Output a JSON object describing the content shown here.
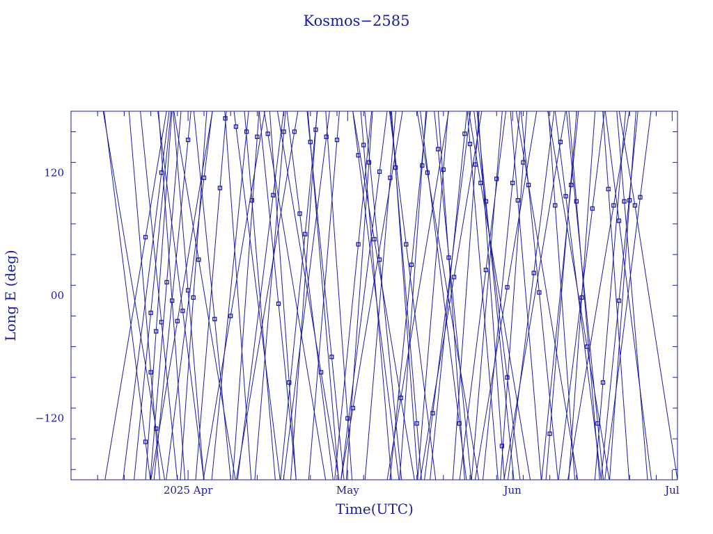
{
  "chart_data": {
    "type": "line",
    "title": "Kosmos−2585",
    "xlabel": "Time(UTC)",
    "ylabel": "Long E (deg)",
    "x_ticks": [
      {
        "label": "2025 Apr",
        "date": "2025-04-01"
      },
      {
        "label": "May",
        "date": "2025-05-01"
      },
      {
        "label": "Jun",
        "date": "2025-06-01"
      },
      {
        "label": "Jul",
        "date": "2025-07-01"
      }
    ],
    "y_ticks": [
      {
        "label": "−120",
        "value": -120
      },
      {
        "label": "00",
        "value": 0
      },
      {
        "label": "120",
        "value": 120
      }
    ],
    "xlim": [
      "2025-03-10",
      "2025-07-02"
    ],
    "ylim": [
      -180,
      180
    ],
    "series_color": "#1a1aa0",
    "sample_points": [
      {
        "x": "2025-03-24",
        "y": 57
      },
      {
        "x": "2025-03-24",
        "y": -143
      },
      {
        "x": "2025-03-25",
        "y": -17
      },
      {
        "x": "2025-03-25",
        "y": -75
      },
      {
        "x": "2025-03-26",
        "y": -35
      },
      {
        "x": "2025-03-26",
        "y": -130
      },
      {
        "x": "2025-03-27",
        "y": 120
      },
      {
        "x": "2025-03-27",
        "y": -26
      },
      {
        "x": "2025-03-28",
        "y": 13
      },
      {
        "x": "2025-03-29",
        "y": -5
      },
      {
        "x": "2025-03-30",
        "y": -25
      },
      {
        "x": "2025-03-31",
        "y": -15
      },
      {
        "x": "2025-04-01",
        "y": 152
      },
      {
        "x": "2025-04-01",
        "y": 5
      },
      {
        "x": "2025-04-02",
        "y": -2
      },
      {
        "x": "2025-04-03",
        "y": 35
      },
      {
        "x": "2025-04-04",
        "y": 115
      },
      {
        "x": "2025-04-06",
        "y": -23
      },
      {
        "x": "2025-04-07",
        "y": 105
      },
      {
        "x": "2025-04-08",
        "y": 173
      },
      {
        "x": "2025-04-09",
        "y": -20
      },
      {
        "x": "2025-04-10",
        "y": 165
      },
      {
        "x": "2025-04-12",
        "y": 160
      },
      {
        "x": "2025-04-13",
        "y": 93
      },
      {
        "x": "2025-04-14",
        "y": 155
      },
      {
        "x": "2025-04-16",
        "y": 158
      },
      {
        "x": "2025-04-17",
        "y": 98
      },
      {
        "x": "2025-04-18",
        "y": -8
      },
      {
        "x": "2025-04-19",
        "y": 160
      },
      {
        "x": "2025-04-20",
        "y": -85
      },
      {
        "x": "2025-04-21",
        "y": 160
      },
      {
        "x": "2025-04-22",
        "y": 80
      },
      {
        "x": "2025-04-23",
        "y": 60
      },
      {
        "x": "2025-04-24",
        "y": 150
      },
      {
        "x": "2025-04-25",
        "y": 162
      },
      {
        "x": "2025-04-26",
        "y": -75
      },
      {
        "x": "2025-04-27",
        "y": 155
      },
      {
        "x": "2025-04-28",
        "y": -60
      },
      {
        "x": "2025-04-29",
        "y": 152
      },
      {
        "x": "2025-05-01",
        "y": -120
      },
      {
        "x": "2025-05-02",
        "y": -110
      },
      {
        "x": "2025-05-03",
        "y": 137
      },
      {
        "x": "2025-05-03",
        "y": 50
      },
      {
        "x": "2025-05-04",
        "y": 147
      },
      {
        "x": "2025-05-05",
        "y": 130
      },
      {
        "x": "2025-05-06",
        "y": 55
      },
      {
        "x": "2025-05-07",
        "y": 121
      },
      {
        "x": "2025-05-07",
        "y": 35
      },
      {
        "x": "2025-05-09",
        "y": 115
      },
      {
        "x": "2025-05-10",
        "y": 125
      },
      {
        "x": "2025-05-11",
        "y": -100
      },
      {
        "x": "2025-05-12",
        "y": 50
      },
      {
        "x": "2025-05-13",
        "y": 30
      },
      {
        "x": "2025-05-14",
        "y": -125
      },
      {
        "x": "2025-05-15",
        "y": 127
      },
      {
        "x": "2025-05-16",
        "y": 120
      },
      {
        "x": "2025-05-17",
        "y": -115
      },
      {
        "x": "2025-05-18",
        "y": 143
      },
      {
        "x": "2025-05-19",
        "y": 123
      },
      {
        "x": "2025-05-20",
        "y": 37
      },
      {
        "x": "2025-05-21",
        "y": 18
      },
      {
        "x": "2025-05-22",
        "y": -125
      },
      {
        "x": "2025-05-23",
        "y": 158
      },
      {
        "x": "2025-05-24",
        "y": 148
      },
      {
        "x": "2025-05-25",
        "y": 128
      },
      {
        "x": "2025-05-26",
        "y": 110
      },
      {
        "x": "2025-05-27",
        "y": 25
      },
      {
        "x": "2025-05-27",
        "y": 92
      },
      {
        "x": "2025-05-29",
        "y": 114
      },
      {
        "x": "2025-05-30",
        "y": -147
      },
      {
        "x": "2025-05-31",
        "y": 8
      },
      {
        "x": "2025-05-31",
        "y": -80
      },
      {
        "x": "2025-06-01",
        "y": 110
      },
      {
        "x": "2025-06-02",
        "y": 93
      },
      {
        "x": "2025-06-03",
        "y": 130
      },
      {
        "x": "2025-06-04",
        "y": 108
      },
      {
        "x": "2025-06-05",
        "y": 22
      },
      {
        "x": "2025-06-06",
        "y": 3
      },
      {
        "x": "2025-06-08",
        "y": -135
      },
      {
        "x": "2025-06-09",
        "y": 88
      },
      {
        "x": "2025-06-10",
        "y": 150
      },
      {
        "x": "2025-06-11",
        "y": 97
      },
      {
        "x": "2025-06-12",
        "y": 108
      },
      {
        "x": "2025-06-13",
        "y": 92
      },
      {
        "x": "2025-06-14",
        "y": -2
      },
      {
        "x": "2025-06-15",
        "y": -50
      },
      {
        "x": "2025-06-16",
        "y": 85
      },
      {
        "x": "2025-06-17",
        "y": -125
      },
      {
        "x": "2025-06-18",
        "y": -85
      },
      {
        "x": "2025-06-19",
        "y": 104
      },
      {
        "x": "2025-06-20",
        "y": 88
      },
      {
        "x": "2025-06-21",
        "y": 73
      },
      {
        "x": "2025-06-21",
        "y": -5
      },
      {
        "x": "2025-06-22",
        "y": 92
      },
      {
        "x": "2025-06-23",
        "y": 93
      },
      {
        "x": "2025-06-24",
        "y": 88
      },
      {
        "x": "2025-06-25",
        "y": 96
      }
    ]
  }
}
